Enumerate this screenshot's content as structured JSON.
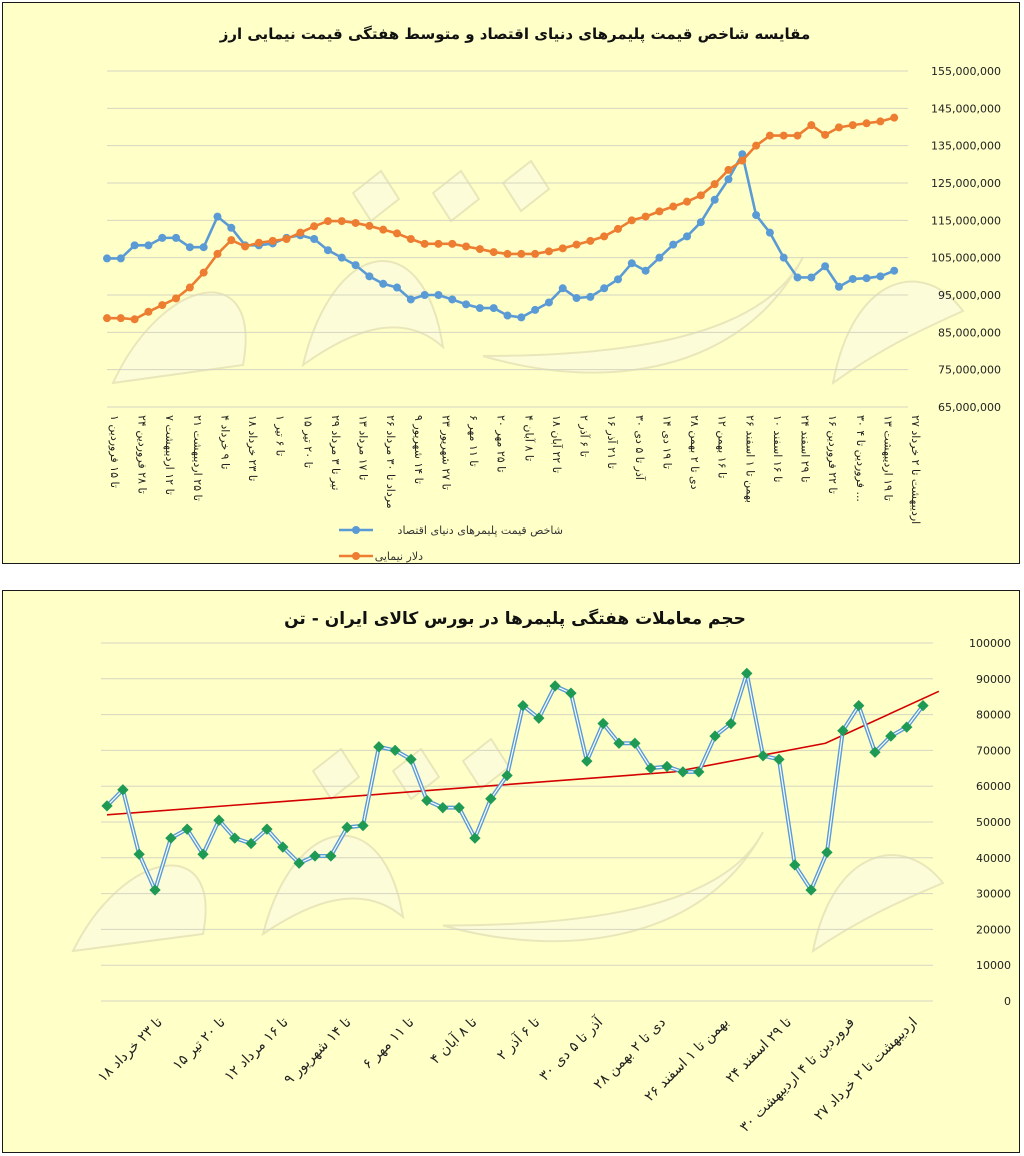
{
  "chart_data": [
    {
      "type": "line",
      "title": "مقایسه شاخص قیمت پلیمرهای دنیای اقتصاد و متوسط هفتگی قیمت نیمایی ارز",
      "xlabel": "",
      "ylabel": "",
      "ylim": [
        65000000,
        155000000
      ],
      "y_ticks": [
        "155,000,000",
        "145,000,000",
        "135,000,000",
        "125,000,000",
        "115,000,000",
        "105,000,000",
        "95,000,000",
        "85,000,000",
        "75,000,000",
        "65,000,000"
      ],
      "y_tick_values": [
        155000000,
        145000000,
        135000000,
        125000000,
        115000000,
        105000000,
        95000000,
        85000000,
        75000000,
        65000000
      ],
      "x_tick_labels": [
        "۱ تا ۱۵ فروردین",
        "۲۴ تا ۲۸ فروردین",
        "۷ تا ۱۲ اردیبهشت",
        "۲۱ تا ۲۵ اردیبهشت",
        "۴ تا ۹ خرداد",
        "۱۸ تا ۲۳ خرداد",
        "۱ تا ۶ تیر",
        "۱۵ تا ۲۰ تیر",
        "۲۹ تیر تا ۳ مرداد",
        "۱۳ تا ۱۷ مرداد",
        "۲۶ مرداد تا ۳۰ مرداد",
        "۹ تا ۱۴ شهریور",
        "۲۳ تا ۲۷ شهریور",
        "۶ تا ۱۱ مهر",
        "۲۰ تا ۲۵ مهر",
        "۴ تا ۸ آبان",
        "۱۸ تا ۲۲ آبان",
        "۲ تا ۶ آذر",
        "۱۶ تا ۲۱ آذر",
        "۳۰ آذر تا ۵ دی",
        "۱۴ تا ۱۹ دی",
        "۲۸ دی تا ۲ بهمن",
        "۱۲ تا ۱۶ بهمن",
        "۲۶ بهمن تا ۱ اسفند",
        "۱۰ تا ۱۶ اسفند",
        "۲۴ تا ۲۹ اسفند",
        "۱۶ تا ۲۲ فروردین",
        "۳۰ فروردین تا ۴ ...",
        "۱۳ تا ۱۹ اردیبهشت",
        "۲۷ اردیبهشت تا ۲ خرداد"
      ],
      "series": [
        {
          "name": "شاخص قیمت پلیمرهای دنیای اقتصاد",
          "color": "#5b9bd5",
          "values": [
            104800000,
            104800000,
            108300000,
            108300000,
            110300000,
            110300000,
            107800000,
            107800000,
            116000000,
            113000000,
            108300000,
            108300000,
            108800000,
            110300000,
            111000000,
            110000000,
            107000000,
            105000000,
            103000000,
            100000000,
            98000000,
            97000000,
            93800000,
            95000000,
            95000000,
            93800000,
            92500000,
            91500000,
            91500000,
            89500000,
            89000000,
            91000000,
            93000000,
            96800000,
            94200000,
            94500000,
            96800000,
            99200000,
            103500000,
            101500000,
            105000000,
            108500000,
            110700000,
            114500000,
            120500000,
            126000000,
            132700000,
            116400000,
            111700000,
            105000000,
            99700000,
            99700000,
            102700000,
            97200000,
            99300000,
            99500000,
            100000000,
            101500000
          ],
          "x": [
            0,
            0.5,
            1,
            1.5,
            2,
            2.5,
            3,
            3.5,
            4,
            4.5,
            5,
            5.5,
            6,
            6.5,
            7,
            7.5,
            8,
            8.5,
            9,
            9.5,
            10,
            10.5,
            11,
            11.5,
            12,
            12.5,
            13,
            13.5,
            14,
            14.5,
            15,
            15.5,
            16,
            16.5,
            17,
            17.5,
            18,
            18.5,
            19,
            19.5,
            20,
            20.5,
            21,
            21.5,
            22,
            22.5,
            23,
            23.5,
            24,
            24.5,
            25,
            25.5,
            26,
            26.5,
            27,
            27.5,
            28,
            28.5
          ]
        },
        {
          "name": "دلار نیمایی",
          "color": "#ed7d31",
          "values": [
            88800000,
            88800000,
            88500000,
            90500000,
            92300000,
            94100000,
            97000000,
            101000000,
            106000000,
            109700000,
            108000000,
            109000000,
            109500000,
            110000000,
            111700000,
            113400000,
            114800000,
            114800000,
            114300000,
            113500000,
            112500000,
            111500000,
            110000000,
            108700000,
            108700000,
            108700000,
            108000000,
            107300000,
            106500000,
            106000000,
            106000000,
            106000000,
            106700000,
            107500000,
            108500000,
            109500000,
            110700000,
            112700000,
            115000000,
            116000000,
            117400000,
            118700000,
            120000000,
            121700000,
            124700000,
            128500000,
            131000000,
            135000000,
            137700000,
            137700000,
            137700000,
            140500000,
            137900000,
            139900000,
            140500000,
            141000000,
            141500000,
            142500000
          ],
          "x": [
            0,
            0.5,
            1,
            1.5,
            2,
            2.5,
            3,
            3.5,
            4,
            4.5,
            5,
            5.5,
            6,
            6.5,
            7,
            7.5,
            8,
            8.5,
            9,
            9.5,
            10,
            10.5,
            11,
            11.5,
            12,
            12.5,
            13,
            13.5,
            14,
            14.5,
            15,
            15.5,
            16,
            16.5,
            17,
            17.5,
            18,
            18.5,
            19,
            19.5,
            20,
            20.5,
            21,
            21.5,
            22,
            22.5,
            23,
            23.5,
            24,
            24.5,
            25,
            25.5,
            26,
            26.5,
            27,
            27.5,
            28,
            28.5
          ]
        }
      ],
      "legend": "bottom-center",
      "grid": true
    },
    {
      "type": "line",
      "title": "حجم معاملات هفتگی پلیمرها در بورس کالای ایران - تن",
      "xlabel": "",
      "ylabel": "",
      "ylim": [
        0,
        100000
      ],
      "y_ticks": [
        "100000",
        "90000",
        "80000",
        "70000",
        "60000",
        "50000",
        "40000",
        "30000",
        "20000",
        "10000",
        "0"
      ],
      "y_tick_values": [
        100000,
        90000,
        80000,
        70000,
        60000,
        50000,
        40000,
        30000,
        20000,
        10000,
        0
      ],
      "x_tick_labels": [
        "۱۸ تا ۲۳ خرداد",
        "۱۵ تا ۲۰ تیر",
        "۱۲ تا ۱۶ مرداد",
        "۹ تا ۱۴ شهریور",
        "۶ تا ۱۱ مهر",
        "۴ تا ۸ آبان",
        "۲ تا ۶ آذر",
        "۳۰ آذر تا ۵ دی",
        "۲۸ دی تا ۲ بهمن",
        "۲۶ بهمن تا ۱ اسفند",
        "۲۴ تا ۲۹ اسفند",
        "۳۰ فروردین تا ۴ اردیبهشت",
        "۲۷ اردیبهشت تا ۲ خرداد"
      ],
      "series": [
        {
          "name": "",
          "color": "#5b9bd5",
          "marker_color": "#1f9a55",
          "values": [
            54500,
            59000,
            41000,
            31000,
            45500,
            48000,
            41000,
            50500,
            45500,
            44000,
            48000,
            43000,
            38500,
            40500,
            40500,
            48500,
            49000,
            71000,
            70000,
            67500,
            56000,
            54000,
            54000,
            45500,
            56500,
            63000,
            82500,
            79000,
            88000,
            86000,
            67000,
            77500,
            72000,
            72000,
            65000,
            65500,
            64000,
            64000,
            74000,
            77500,
            91500,
            68500,
            67500,
            38000,
            31000,
            41500,
            75500,
            82500,
            69500,
            74000,
            76500,
            82500
          ],
          "x": [
            0,
            0.42,
            0.85,
            1.27,
            1.69,
            2.12,
            2.54,
            2.96,
            3.38,
            3.81,
            4.23,
            4.65,
            5.08,
            5.5,
            5.92,
            6.35,
            6.77,
            7.19,
            7.62,
            8.04,
            8.46,
            8.88,
            9.31,
            9.73,
            10.15,
            10.58,
            11,
            11.42,
            11.85,
            12.27,
            12.69,
            13.12,
            13.54,
            13.96,
            14.38,
            14.81,
            15.23,
            15.65,
            16.08,
            16.5,
            16.92,
            17.35,
            17.77,
            18.19,
            18.62,
            19.04,
            19.46,
            19.88,
            20.31,
            20.73,
            21.15,
            21.58
          ]
        },
        {
          "name": "",
          "color": "#d40000",
          "kind": "trendline",
          "values": [
            52000,
            56000,
            60000,
            64000,
            72000,
            86500
          ],
          "x": [
            0,
            5,
            10,
            15,
            19,
            22
          ]
        }
      ],
      "legend": "none",
      "grid": true
    }
  ]
}
